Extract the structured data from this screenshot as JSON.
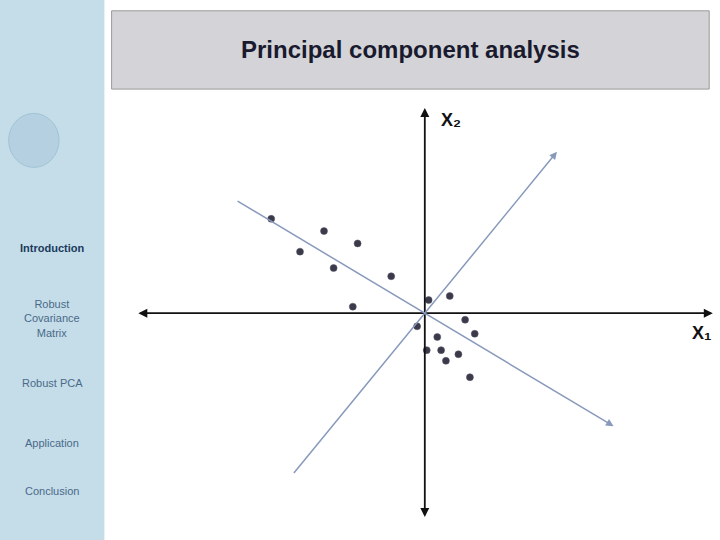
{
  "chart_data": {
    "type": "scatter",
    "title": "Principal component analysis",
    "xlabel": "X₁",
    "ylabel": "X₂",
    "annotations": [
      "Introduction",
      "Robust\nCovariance\nMatrix",
      "Robust PCA",
      "Application",
      "Conclusion"
    ],
    "xlim": [
      -3.0,
      3.0
    ],
    "ylim": [
      -2.5,
      2.5
    ],
    "tick_labels": false,
    "grid": false,
    "series": [
      {
        "type": "scatter",
        "color": "#3a3a4a",
        "x": [
          -1.6,
          -1.05,
          -1.3,
          -0.7,
          -0.95,
          -0.35,
          -0.75,
          0.04,
          0.26,
          0.42,
          0.13,
          0.52,
          0.17,
          0.35,
          0.47,
          0.22,
          0.02,
          -0.08
        ],
        "values": [
          1.15,
          1.0,
          0.75,
          0.85,
          0.55,
          0.45,
          0.08,
          0.16,
          0.21,
          -0.08,
          -0.29,
          -0.25,
          -0.45,
          -0.5,
          -0.78,
          -0.58,
          -0.45,
          -0.16
        ]
      },
      {
        "type": "arrow",
        "color": "#8899bb",
        "x": [
          -1.965965,
          1.965965
        ],
        "values": [
          1.376583,
          -1.376583
        ]
      },
      {
        "type": "arrow",
        "color": "#8899bb",
        "x": [
          -1.376583,
          1.376583
        ],
        "values": [
          -1.965965,
          1.965965
        ]
      }
    ]
  }
}
